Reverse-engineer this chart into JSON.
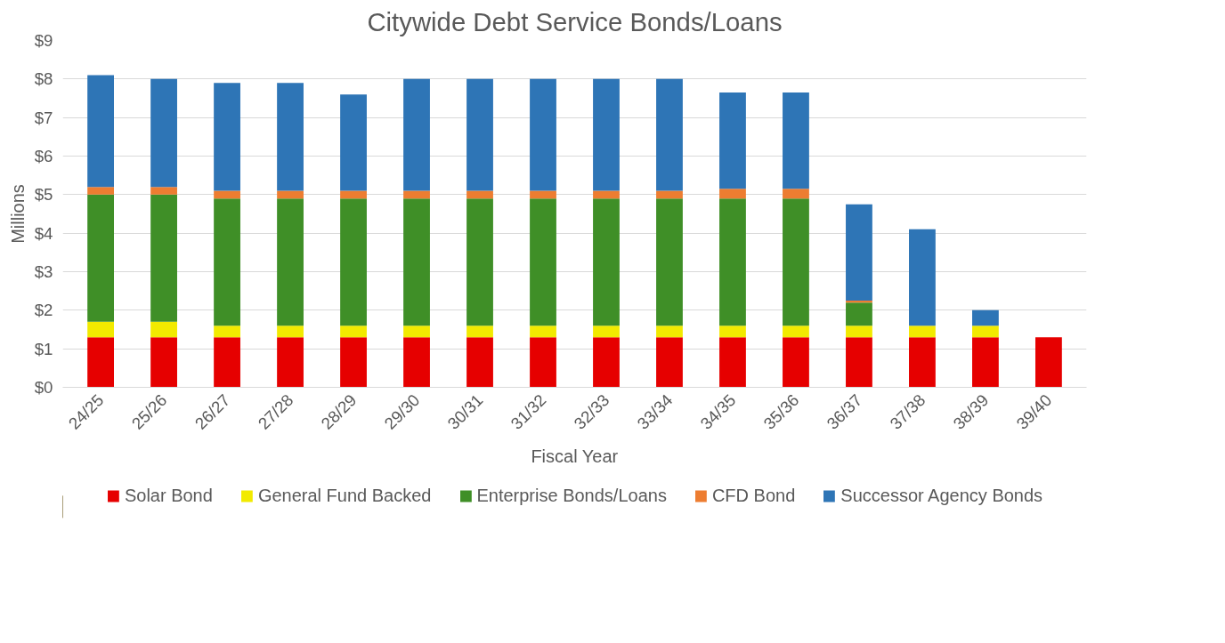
{
  "chart_data": {
    "type": "bar",
    "title": "Citywide Debt Service Bonds/Loans",
    "xlabel": "Fiscal Year",
    "ylabel": "Millions",
    "stacked": true,
    "grid": "y",
    "legend": "bottom",
    "categories": [
      "24/25",
      "25/26",
      "26/27",
      "27/28",
      "28/29",
      "29/30",
      "30/31",
      "31/32",
      "32/33",
      "33/34",
      "34/35",
      "35/36",
      "36/37",
      "37/38",
      "38/39",
      "39/40"
    ],
    "ylim": [
      0,
      9
    ],
    "yticks": [
      {
        "value": 0,
        "label": "$0"
      },
      {
        "value": 1,
        "label": "$1"
      },
      {
        "value": 2,
        "label": "$2"
      },
      {
        "value": 3,
        "label": "$3"
      },
      {
        "value": 4,
        "label": "$4"
      },
      {
        "value": 5,
        "label": "$5"
      },
      {
        "value": 6,
        "label": "$6"
      },
      {
        "value": 7,
        "label": "$7"
      },
      {
        "value": 8,
        "label": "$8"
      },
      {
        "value": 9,
        "label": "$9"
      }
    ],
    "series": [
      {
        "name": "Solar Bond",
        "color": "#e60000",
        "values": [
          1.3,
          1.3,
          1.3,
          1.3,
          1.3,
          1.3,
          1.3,
          1.3,
          1.3,
          1.3,
          1.3,
          1.3,
          1.3,
          1.3,
          1.3,
          1.3
        ]
      },
      {
        "name": "General Fund Backed",
        "color": "#f2ea00",
        "values": [
          0.4,
          0.4,
          0.3,
          0.3,
          0.3,
          0.3,
          0.3,
          0.3,
          0.3,
          0.3,
          0.3,
          0.3,
          0.3,
          0.3,
          0.3,
          0
        ]
      },
      {
        "name": "Enterprise Bonds/Loans",
        "color": "#3f8f27",
        "values": [
          3.3,
          3.3,
          3.3,
          3.3,
          3.3,
          3.3,
          3.3,
          3.3,
          3.3,
          3.3,
          3.3,
          3.3,
          0.6,
          0,
          0,
          0
        ]
      },
      {
        "name": "CFD Bond",
        "color": "#ed7d31",
        "values": [
          0.2,
          0.2,
          0.2,
          0.2,
          0.2,
          0.2,
          0.2,
          0.2,
          0.2,
          0.2,
          0.25,
          0.25,
          0.05,
          0,
          0,
          0
        ]
      },
      {
        "name": "Successor Agency Bonds",
        "color": "#2e75b6",
        "values": [
          2.9,
          2.8,
          2.8,
          2.8,
          2.5,
          2.9,
          2.9,
          2.9,
          2.9,
          2.9,
          2.5,
          2.5,
          2.5,
          2.5,
          0.4,
          0
        ]
      }
    ]
  }
}
